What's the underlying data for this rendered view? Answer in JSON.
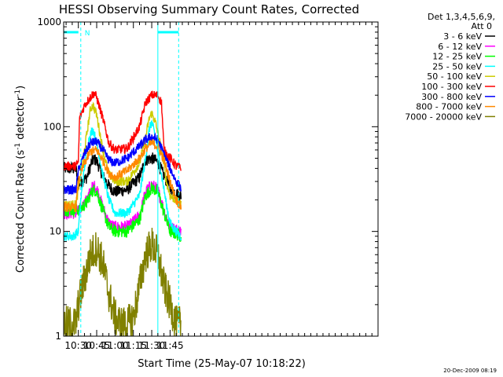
{
  "chart_data": {
    "type": "line",
    "title": "HESSI Observing Summary Count Rates, Corrected",
    "xlabel": "Start Time (25-May-07 10:18:22)",
    "ylabel_main": "Corrected Count Rate (s",
    "ylabel_sup1": "-1",
    "ylabel_mid": " detector",
    "ylabel_sup2": "-1",
    "ylabel_end": ")",
    "yscale": "log",
    "xlim_min": [
      618,
      875
    ],
    "ylim": [
      1,
      1000
    ],
    "x_ticks": [
      {
        "min": 630,
        "label": "10:30"
      },
      {
        "min": 645,
        "label": "10:45"
      },
      {
        "min": 660,
        "label": "11:00"
      },
      {
        "min": 675,
        "label": "11:15"
      },
      {
        "min": 690,
        "label": "11:30"
      },
      {
        "min": 705,
        "label": "11:45"
      }
    ],
    "x_minor_step_min": 5,
    "y_ticks": [
      {
        "value": 1,
        "label": "1"
      },
      {
        "value": 10,
        "label": "10"
      },
      {
        "value": 100,
        "label": "100"
      },
      {
        "value": 1000,
        "label": "1000"
      }
    ],
    "legend_header": [
      "Det 1,3,4,5,6,9,",
      "Att 0"
    ],
    "legend_position": "right",
    "series": [
      {
        "name": "3 - 6 keV",
        "color": "#000000",
        "values": [
          [
            618,
            40
          ],
          [
            628,
            40
          ],
          [
            630,
            28
          ],
          [
            637,
            33
          ],
          [
            641,
            46
          ],
          [
            643,
            49
          ],
          [
            645,
            47
          ],
          [
            650,
            34
          ],
          [
            655,
            27
          ],
          [
            660,
            24
          ],
          [
            670,
            25
          ],
          [
            680,
            33
          ],
          [
            685,
            48
          ],
          [
            690,
            50
          ],
          [
            695,
            46
          ],
          [
            700,
            34
          ],
          [
            705,
            26
          ],
          [
            710,
            23
          ],
          [
            714,
            22
          ]
        ]
      },
      {
        "name": "6 - 12 keV",
        "color": "#ff00ff",
        "values": [
          [
            618,
            15
          ],
          [
            628,
            15
          ],
          [
            631,
            16
          ],
          [
            637,
            20
          ],
          [
            641,
            26
          ],
          [
            643,
            27
          ],
          [
            645,
            26
          ],
          [
            650,
            17
          ],
          [
            655,
            12
          ],
          [
            660,
            11
          ],
          [
            670,
            11
          ],
          [
            680,
            14
          ],
          [
            685,
            24
          ],
          [
            690,
            28
          ],
          [
            695,
            25
          ],
          [
            700,
            16
          ],
          [
            705,
            11
          ],
          [
            714,
            10
          ]
        ]
      },
      {
        "name": "12 - 25 keV",
        "color": "#00ff00",
        "values": [
          [
            618,
            16
          ],
          [
            628,
            16
          ],
          [
            631,
            16
          ],
          [
            637,
            19
          ],
          [
            641,
            24
          ],
          [
            643,
            25
          ],
          [
            645,
            24
          ],
          [
            650,
            16
          ],
          [
            655,
            11
          ],
          [
            660,
            10
          ],
          [
            670,
            10
          ],
          [
            680,
            13
          ],
          [
            685,
            22
          ],
          [
            690,
            26
          ],
          [
            695,
            24
          ],
          [
            700,
            15
          ],
          [
            705,
            10
          ],
          [
            714,
            9
          ]
        ]
      },
      {
        "name": "25 - 50 keV",
        "color": "#00ffff",
        "values": [
          [
            618,
            9
          ],
          [
            626,
            9
          ],
          [
            630,
            10
          ],
          [
            632,
            20
          ],
          [
            636,
            50
          ],
          [
            639,
            80
          ],
          [
            642,
            95
          ],
          [
            645,
            70
          ],
          [
            650,
            35
          ],
          [
            655,
            20
          ],
          [
            660,
            15
          ],
          [
            670,
            15
          ],
          [
            680,
            22
          ],
          [
            685,
            50
          ],
          [
            688,
            95
          ],
          [
            690,
            110
          ],
          [
            693,
            80
          ],
          [
            698,
            35
          ],
          [
            702,
            18
          ],
          [
            705,
            12
          ],
          [
            710,
            10
          ],
          [
            714,
            9
          ]
        ]
      },
      {
        "name": "50 - 100 keV",
        "color": "#cccc00",
        "values": [
          [
            618,
            18
          ],
          [
            628,
            18
          ],
          [
            630,
            25
          ],
          [
            635,
            60
          ],
          [
            640,
            150
          ],
          [
            642,
            160
          ],
          [
            645,
            130
          ],
          [
            650,
            60
          ],
          [
            655,
            35
          ],
          [
            660,
            30
          ],
          [
            670,
            30
          ],
          [
            680,
            45
          ],
          [
            685,
            80
          ],
          [
            688,
            120
          ],
          [
            690,
            135
          ],
          [
            693,
            110
          ],
          [
            698,
            60
          ],
          [
            702,
            30
          ],
          [
            705,
            22
          ],
          [
            714,
            18
          ]
        ]
      },
      {
        "name": "100 - 300 keV",
        "color": "#ff0000",
        "values": [
          [
            618,
            42
          ],
          [
            628,
            42
          ],
          [
            630,
            46
          ],
          [
            631,
            120
          ],
          [
            635,
            160
          ],
          [
            641,
            200
          ],
          [
            643,
            210
          ],
          [
            645,
            190
          ],
          [
            650,
            120
          ],
          [
            655,
            70
          ],
          [
            660,
            60
          ],
          [
            670,
            62
          ],
          [
            680,
            100
          ],
          [
            685,
            170
          ],
          [
            690,
            200
          ],
          [
            695,
            200
          ],
          [
            698,
            170
          ],
          [
            700,
            60
          ],
          [
            705,
            50
          ],
          [
            710,
            42
          ],
          [
            714,
            40
          ]
        ]
      },
      {
        "name": "300 - 800 keV",
        "color": "#0000ff",
        "values": [
          [
            618,
            25
          ],
          [
            628,
            25
          ],
          [
            630,
            38
          ],
          [
            635,
            55
          ],
          [
            640,
            70
          ],
          [
            645,
            72
          ],
          [
            650,
            60
          ],
          [
            655,
            48
          ],
          [
            660,
            45
          ],
          [
            670,
            50
          ],
          [
            680,
            65
          ],
          [
            685,
            75
          ],
          [
            690,
            80
          ],
          [
            695,
            75
          ],
          [
            700,
            55
          ],
          [
            705,
            40
          ],
          [
            710,
            30
          ],
          [
            714,
            26
          ]
        ]
      },
      {
        "name": "800 - 7000 keV",
        "color": "#ff8800",
        "values": [
          [
            618,
            17
          ],
          [
            628,
            17
          ],
          [
            630,
            30
          ],
          [
            635,
            45
          ],
          [
            640,
            58
          ],
          [
            645,
            60
          ],
          [
            650,
            48
          ],
          [
            655,
            36
          ],
          [
            660,
            33
          ],
          [
            670,
            38
          ],
          [
            680,
            50
          ],
          [
            685,
            62
          ],
          [
            690,
            70
          ],
          [
            695,
            65
          ],
          [
            700,
            48
          ],
          [
            705,
            30
          ],
          [
            710,
            20
          ],
          [
            714,
            17
          ]
        ]
      },
      {
        "name": "7000 - 20000 keV",
        "color": "#808000",
        "values": [
          [
            618,
            1.3
          ],
          [
            628,
            1.3
          ],
          [
            630,
            2
          ],
          [
            635,
            3.5
          ],
          [
            640,
            6
          ],
          [
            645,
            7
          ],
          [
            650,
            5
          ],
          [
            655,
            2.5
          ],
          [
            660,
            1.5
          ],
          [
            665,
            1.3
          ],
          [
            670,
            1.3
          ],
          [
            675,
            1.5
          ],
          [
            680,
            3
          ],
          [
            685,
            6
          ],
          [
            690,
            7.5
          ],
          [
            695,
            6
          ],
          [
            700,
            3
          ],
          [
            705,
            2
          ],
          [
            710,
            1.3
          ],
          [
            714,
            1.3
          ]
        ]
      }
    ],
    "annotations": {
      "top_bars_color": "#00ffff",
      "left_bar_min": [
        618,
        632
      ],
      "left_bar_marker": "N",
      "right_bar_min": [
        695,
        712
      ],
      "vlines_dashed_min": [
        632,
        712
      ],
      "vline_solid_min": 695
    },
    "timestamp": "20-Dec-2009 08:19"
  }
}
